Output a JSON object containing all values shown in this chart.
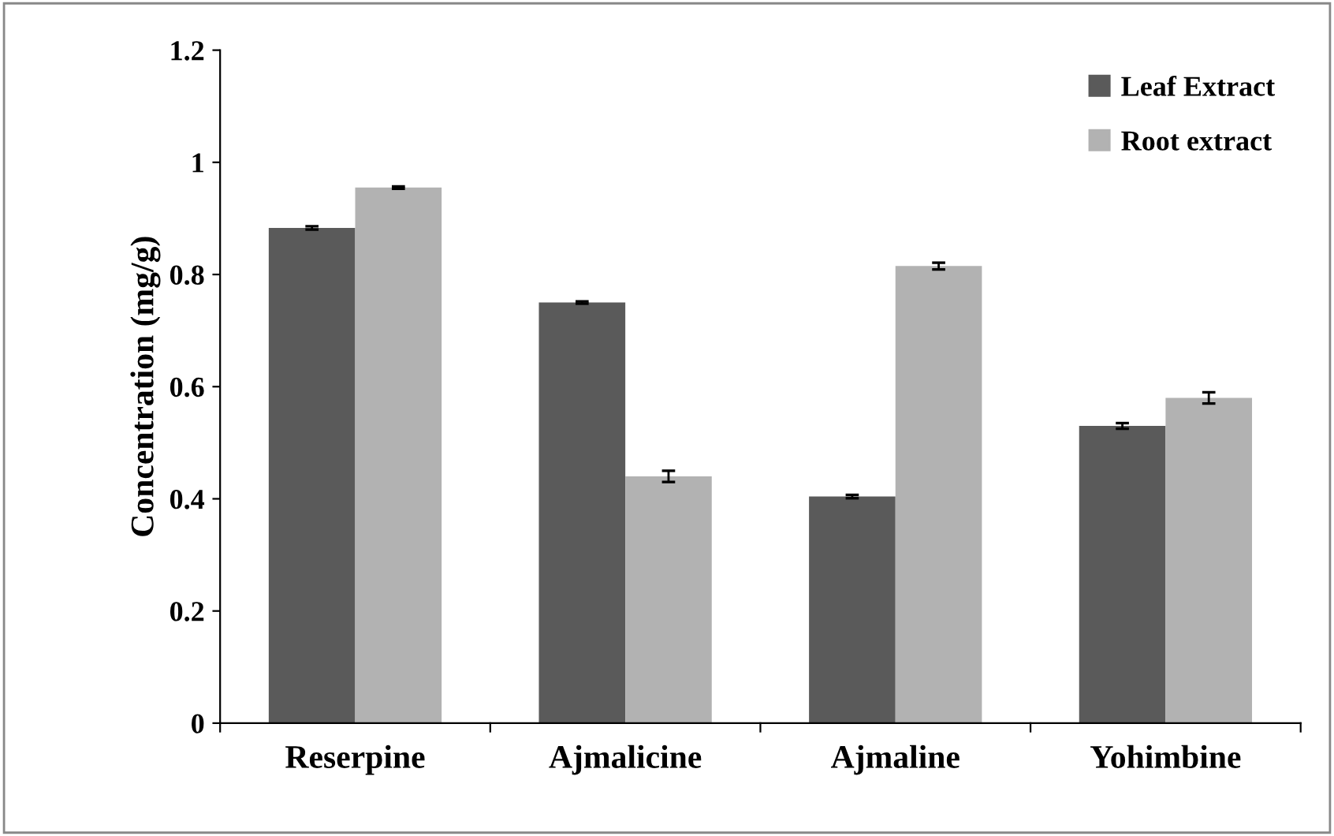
{
  "chart_data": {
    "type": "bar",
    "ylabel": "Concentration (mg/g)",
    "categories": [
      "Reserpine",
      "Ajmalicine",
      "Ajmaline",
      "Yohimbine"
    ],
    "series": [
      {
        "name": "Leaf Extract",
        "color": "#5a5a5a",
        "values": [
          0.883,
          0.75,
          0.404,
          0.53
        ],
        "errors": [
          0.003,
          0.002,
          0.003,
          0.005
        ]
      },
      {
        "name": "Root extract",
        "color": "#b2b2b2",
        "values": [
          0.955,
          0.44,
          0.815,
          0.58
        ],
        "errors": [
          0.002,
          0.01,
          0.006,
          0.01
        ]
      }
    ],
    "ylim": [
      0,
      1.2
    ],
    "yticks": [
      0,
      0.2,
      0.4,
      0.6,
      0.8,
      1,
      1.2
    ],
    "grid": false,
    "legend": "top right"
  }
}
